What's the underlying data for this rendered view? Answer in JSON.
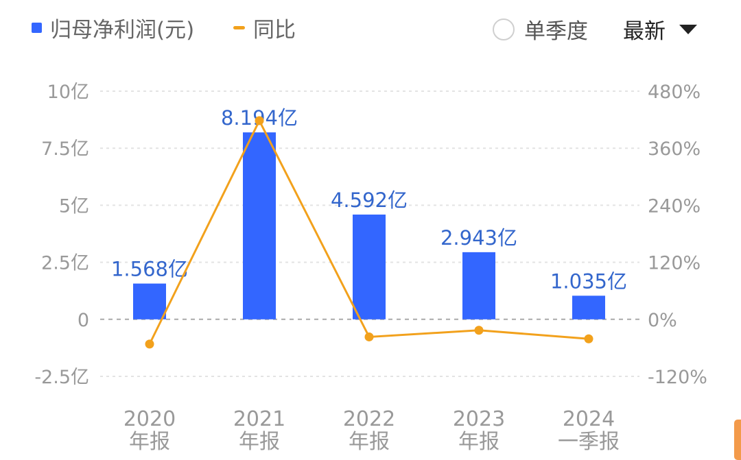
{
  "legend": {
    "bar_label": "归母净利润(元)",
    "line_label": "同比"
  },
  "controls": {
    "single_quarter_label": "单季度",
    "period_select_value": "最新"
  },
  "colors": {
    "bar": "#3366ff",
    "line": "#f2a11c",
    "bar_label": "#3366cc",
    "axis_text": "#999999",
    "grid": "#e3e3e3",
    "zero_line": "#aaaaaa"
  },
  "chart_data": {
    "type": "bar",
    "categories": [
      [
        "2020",
        "年报"
      ],
      [
        "2021",
        "年报"
      ],
      [
        "2022",
        "年报"
      ],
      [
        "2023",
        "年报"
      ],
      [
        "2024",
        "一季报"
      ]
    ],
    "series": [
      {
        "name": "归母净利润(元)",
        "type": "bar",
        "axis": "left",
        "values": [
          1.568,
          8.194,
          4.592,
          2.943,
          1.035
        ],
        "labels": [
          "1.568亿",
          "8.194亿",
          "4.592亿",
          "2.943亿",
          "1.035亿"
        ]
      },
      {
        "name": "同比",
        "type": "line",
        "axis": "right",
        "values": [
          -52,
          418,
          -37,
          -23,
          -41
        ]
      }
    ],
    "left_axis": {
      "ticks": [
        10,
        7.5,
        5,
        2.5,
        0,
        -2.5
      ],
      "tick_labels": [
        "10亿",
        "7.5亿",
        "5亿",
        "2.5亿",
        "0",
        "-2.5亿"
      ],
      "range": [
        -2.5,
        10
      ]
    },
    "right_axis": {
      "ticks": [
        480,
        360,
        240,
        120,
        0,
        -120
      ],
      "tick_labels": [
        "480%",
        "360%",
        "240%",
        "120%",
        "0%",
        "-120%"
      ],
      "range": [
        -120,
        480
      ]
    },
    "grid": true,
    "legend_position": "top-left"
  }
}
